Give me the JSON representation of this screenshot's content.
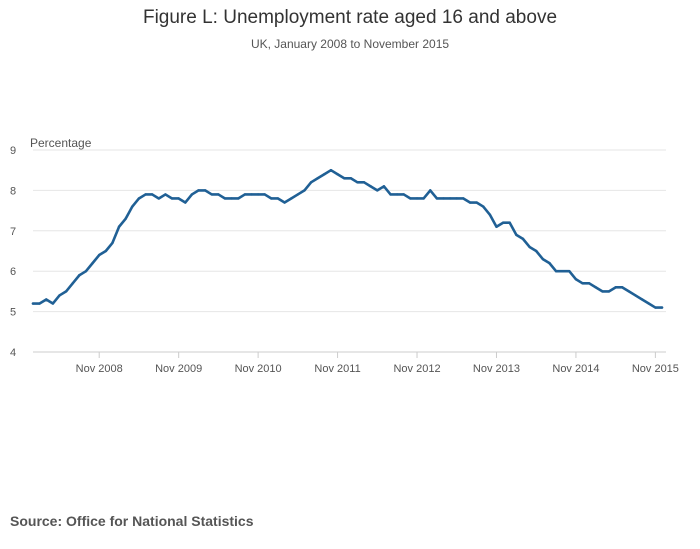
{
  "title": "Figure L: Unemployment rate aged 16 and above",
  "subtitle": "UK, January 2008 to November 2015",
  "source": "Source: Office for National Statistics",
  "colors": {
    "line": "#206095",
    "grid": "#e6e6e6",
    "axis": "#cccccc"
  },
  "chart_data": {
    "type": "line",
    "title": "Figure L: Unemployment rate aged 16 and above",
    "subtitle": "UK, January 2008 to November 2015",
    "ylabel": "Percentage",
    "xlabel": "",
    "ylim": [
      4,
      9
    ],
    "yticks": [
      4,
      5,
      6,
      7,
      8,
      9
    ],
    "xticks": [
      "Nov 2008",
      "Nov 2009",
      "Nov 2010",
      "Nov 2011",
      "Nov 2012",
      "Nov 2013",
      "Nov 2014",
      "Nov 2015"
    ],
    "grid": true,
    "x_range": [
      "Jan 2008",
      "Nov 2015"
    ],
    "series": [
      {
        "values": [
          5.2,
          5.2,
          5.3,
          5.2,
          5.4,
          5.5,
          5.7,
          5.9,
          6.0,
          6.2,
          6.4,
          6.5,
          6.7,
          7.1,
          7.3,
          7.6,
          7.8,
          7.9,
          7.9,
          7.8,
          7.9,
          7.8,
          7.8,
          7.7,
          7.9,
          8.0,
          8.0,
          7.9,
          7.9,
          7.8,
          7.8,
          7.8,
          7.9,
          7.9,
          7.9,
          7.9,
          7.8,
          7.8,
          7.7,
          7.8,
          7.9,
          8.0,
          8.2,
          8.3,
          8.4,
          8.5,
          8.4,
          8.3,
          8.3,
          8.2,
          8.2,
          8.1,
          8.0,
          8.1,
          7.9,
          7.9,
          7.9,
          7.8,
          7.8,
          7.8,
          8.0,
          7.8,
          7.8,
          7.8,
          7.8,
          7.8,
          7.7,
          7.7,
          7.6,
          7.4,
          7.1,
          7.2,
          7.2,
          6.9,
          6.8,
          6.6,
          6.5,
          6.3,
          6.2,
          6.0,
          6.0,
          6.0,
          5.8,
          5.7,
          5.7,
          5.6,
          5.5,
          5.5,
          5.6,
          5.6,
          5.5,
          5.4,
          5.3,
          5.2,
          5.1,
          5.1
        ]
      }
    ]
  }
}
